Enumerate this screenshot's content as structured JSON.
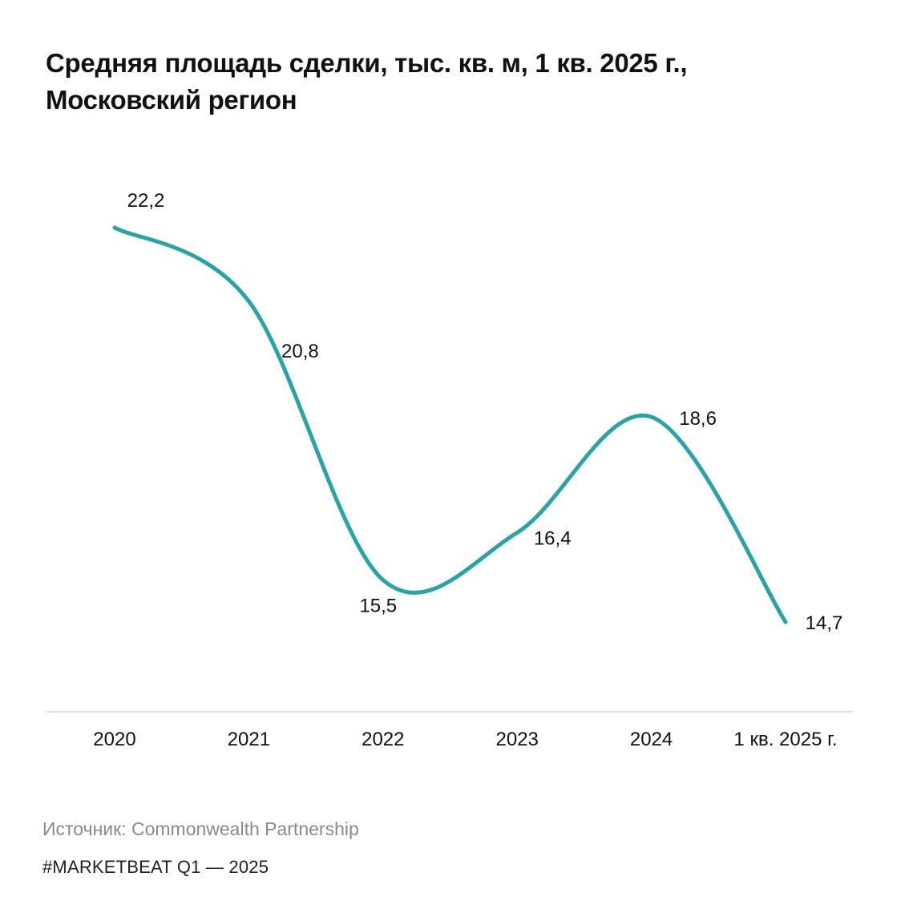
{
  "title": {
    "line1": "Средняя площадь сделки, тыс. кв. м, 1 кв. 2025 г.,",
    "line2": "Московский регион"
  },
  "chart_data": {
    "type": "line",
    "title": "Средняя площадь сделки, тыс. кв. м, 1 кв. 2025 г., Московский регион",
    "categories": [
      "2020",
      "2021",
      "2022",
      "2023",
      "2024",
      "1 кв. 2025 г."
    ],
    "series": [
      {
        "name": "Средняя площадь сделки, тыс. кв. м",
        "values": [
          22.2,
          20.8,
          15.5,
          16.4,
          18.6,
          14.7
        ],
        "labels": [
          "22,2",
          "20,8",
          "15,5",
          "16,4",
          "18,6",
          "14,7"
        ]
      }
    ],
    "xlabel": "",
    "ylabel": "",
    "ylim": [
      10,
      24
    ],
    "grid": false,
    "line_color": "#2aa3a6"
  },
  "source": "Источник: Commonwealth Partnership",
  "footer": "#MARKETBEAT Q1  —  2025"
}
